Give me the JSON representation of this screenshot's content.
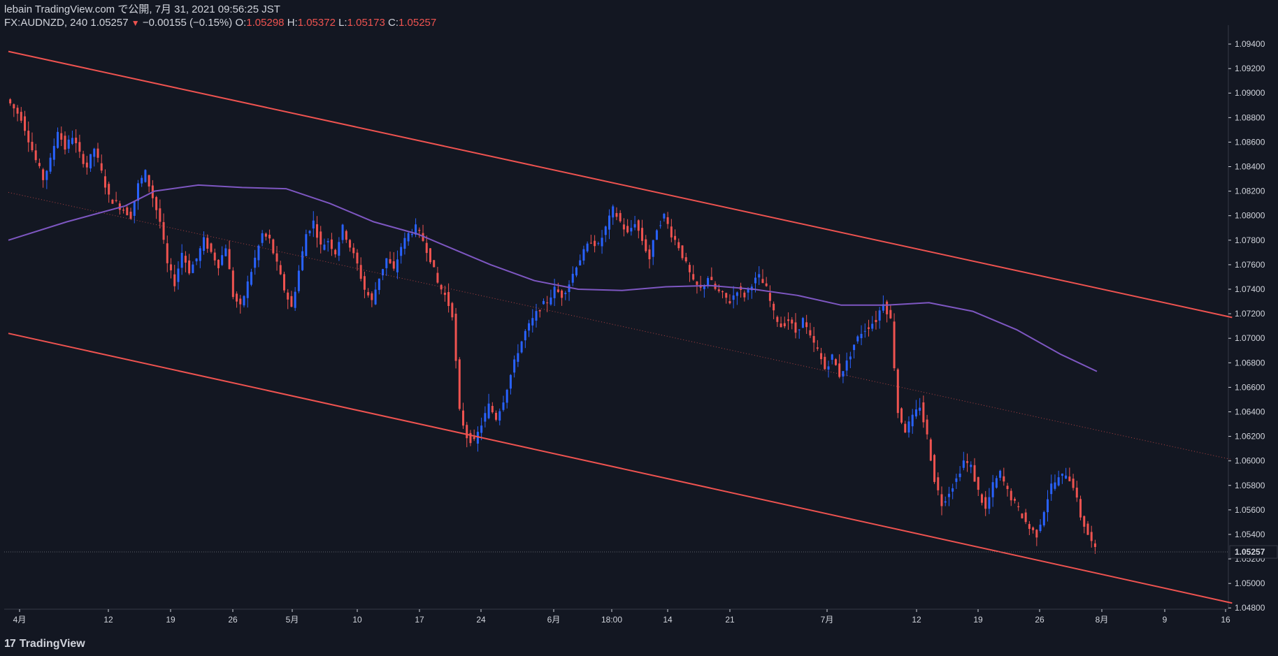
{
  "header": {
    "line1": "lebain TradingView.com で公開, 7月 31, 2021 09:56:25 JST",
    "symbol_prefix": "FX:AUDNZD, 240 1.05257",
    "change_arrow": "▼",
    "change": "−0.00155 (−0.15%)",
    "o_label": "O:",
    "o_value": "1.05298",
    "h_label": "H:",
    "h_value": "1.05372",
    "l_label": "L:",
    "l_value": "1.05173",
    "c_label": "C:",
    "c_value": "1.05257"
  },
  "footer": {
    "logo_icon": "17",
    "logo_text": "TradingView"
  },
  "colors": {
    "background": "#131722",
    "up": "#2962ff",
    "down": "#ef5350",
    "ma": "#7e57c2",
    "channel": "#ef5350",
    "axis_text": "#d1d4dc"
  },
  "chart_data": {
    "type": "candlestick",
    "symbol": "FX:AUDNZD",
    "interval": "240",
    "last_price": "1.05257",
    "y_ticks": [
      "1.09400",
      "1.09200",
      "1.09000",
      "1.08800",
      "1.08600",
      "1.08400",
      "1.08200",
      "1.08000",
      "1.07800",
      "1.07600",
      "1.07400",
      "1.07200",
      "1.07000",
      "1.06800",
      "1.06600",
      "1.06400",
      "1.06200",
      "1.06000",
      "1.05800",
      "1.05600",
      "1.05400",
      "1.05200",
      "1.05000",
      "1.04800"
    ],
    "ylim": [
      1.0479,
      1.0952
    ],
    "x_ticks": [
      "4月",
      "12",
      "19",
      "26",
      "5月",
      "10",
      "17",
      "24",
      "6月",
      "18:00",
      "14",
      "21",
      "7月",
      "12",
      "19",
      "26",
      "8月",
      "9",
      "16"
    ],
    "price_path": [
      [
        0,
        1.0895
      ],
      [
        2,
        1.088
      ],
      [
        4,
        1.0845
      ],
      [
        5,
        1.083
      ],
      [
        6,
        1.0845
      ],
      [
        7,
        1.087
      ],
      [
        8,
        1.0855
      ],
      [
        9,
        1.0865
      ],
      [
        10,
        1.085
      ],
      [
        11,
        1.084
      ],
      [
        12,
        1.0855
      ],
      [
        13,
        1.0835
      ],
      [
        14,
        1.0815
      ],
      [
        15,
        1.081
      ],
      [
        17,
        1.08
      ],
      [
        18,
        1.0825
      ],
      [
        19,
        1.0835
      ],
      [
        20,
        1.0815
      ],
      [
        21,
        1.0795
      ],
      [
        22,
        1.076
      ],
      [
        23,
        1.0745
      ],
      [
        24,
        1.077
      ],
      [
        25,
        1.0755
      ],
      [
        26,
        1.0765
      ],
      [
        27,
        1.078
      ],
      [
        28,
        1.077
      ],
      [
        29,
        1.076
      ],
      [
        30,
        1.0775
      ],
      [
        31,
        1.0735
      ],
      [
        32,
        1.0725
      ],
      [
        33,
        1.0745
      ],
      [
        34,
        1.0765
      ],
      [
        35,
        1.0785
      ],
      [
        36,
        1.078
      ],
      [
        37,
        1.076
      ],
      [
        38,
        1.074
      ],
      [
        39,
        1.0725
      ],
      [
        40,
        1.0755
      ],
      [
        41,
        1.0785
      ],
      [
        42,
        1.0795
      ],
      [
        43,
        1.0775
      ],
      [
        44,
        1.078
      ],
      [
        45,
        1.077
      ],
      [
        46,
        1.079
      ],
      [
        47,
        1.0775
      ],
      [
        48,
        1.076
      ],
      [
        49,
        1.074
      ],
      [
        50,
        1.073
      ],
      [
        51,
        1.075
      ],
      [
        52,
        1.0765
      ],
      [
        53,
        1.0755
      ],
      [
        54,
        1.0775
      ],
      [
        55,
        1.0785
      ],
      [
        56,
        1.079
      ],
      [
        57,
        1.078
      ],
      [
        58,
        1.0765
      ],
      [
        59,
        1.0745
      ],
      [
        60,
        1.0735
      ],
      [
        61,
        1.072
      ],
      [
        62,
        1.064
      ],
      [
        63,
        1.062
      ],
      [
        64,
        1.0615
      ],
      [
        65,
        1.063
      ],
      [
        66,
        1.0645
      ],
      [
        67,
        1.0635
      ],
      [
        68,
        1.065
      ],
      [
        69,
        1.067
      ],
      [
        70,
        1.069
      ],
      [
        71,
        1.0705
      ],
      [
        72,
        1.0715
      ],
      [
        73,
        1.0725
      ],
      [
        74,
        1.073
      ],
      [
        75,
        1.074
      ],
      [
        76,
        1.0735
      ],
      [
        77,
        1.0745
      ],
      [
        78,
        1.076
      ],
      [
        79,
        1.077
      ],
      [
        80,
        1.078
      ],
      [
        81,
        1.0775
      ],
      [
        82,
        1.079
      ],
      [
        83,
        1.0805
      ],
      [
        84,
        1.0795
      ],
      [
        85,
        1.0785
      ],
      [
        86,
        1.0795
      ],
      [
        87,
        1.078
      ],
      [
        88,
        1.0765
      ],
      [
        89,
        1.079
      ],
      [
        90,
        1.08
      ],
      [
        91,
        1.0785
      ],
      [
        92,
        1.0775
      ],
      [
        93,
        1.076
      ],
      [
        94,
        1.0745
      ],
      [
        95,
        1.074
      ],
      [
        96,
        1.075
      ],
      [
        97,
        1.074
      ],
      [
        98,
        1.0735
      ],
      [
        99,
        1.073
      ],
      [
        100,
        1.074
      ],
      [
        101,
        1.0735
      ],
      [
        102,
        1.0745
      ],
      [
        103,
        1.075
      ],
      [
        104,
        1.074
      ],
      [
        105,
        1.072
      ],
      [
        106,
        1.071
      ],
      [
        107,
        1.0715
      ],
      [
        108,
        1.0705
      ],
      [
        109,
        1.0715
      ],
      [
        110,
        1.07
      ],
      [
        111,
        1.069
      ],
      [
        112,
        1.0675
      ],
      [
        113,
        1.0685
      ],
      [
        114,
        1.067
      ],
      [
        115,
        1.068
      ],
      [
        116,
        1.0695
      ],
      [
        117,
        1.0705
      ],
      [
        118,
        1.071
      ],
      [
        119,
        1.0715
      ],
      [
        120,
        1.073
      ],
      [
        121,
        1.0715
      ],
      [
        122,
        1.064
      ],
      [
        123,
        1.0625
      ],
      [
        124,
        1.0635
      ],
      [
        125,
        1.0645
      ],
      [
        126,
        1.062
      ],
      [
        127,
        1.0585
      ],
      [
        128,
        1.0565
      ],
      [
        129,
        1.0575
      ],
      [
        130,
        1.0585
      ],
      [
        131,
        1.06
      ],
      [
        132,
        1.0595
      ],
      [
        133,
        1.0575
      ],
      [
        134,
        1.056
      ],
      [
        135,
        1.058
      ],
      [
        136,
        1.059
      ],
      [
        137,
        1.0575
      ],
      [
        138,
        1.0565
      ],
      [
        139,
        1.0555
      ],
      [
        140,
        1.0545
      ],
      [
        141,
        1.054
      ],
      [
        142,
        1.056
      ],
      [
        143,
        1.058
      ],
      [
        144,
        1.0585
      ],
      [
        145,
        1.059
      ],
      [
        146,
        1.058
      ],
      [
        147,
        1.0555
      ],
      [
        148,
        1.054
      ],
      [
        149,
        1.0527
      ]
    ],
    "moving_average": [
      [
        0,
        1.078
      ],
      [
        8,
        1.0795
      ],
      [
        16,
        1.0808
      ],
      [
        20,
        1.082
      ],
      [
        26,
        1.0825
      ],
      [
        32,
        1.0823
      ],
      [
        38,
        1.0822
      ],
      [
        44,
        1.081
      ],
      [
        50,
        1.0795
      ],
      [
        56,
        1.0785
      ],
      [
        60,
        1.0775
      ],
      [
        66,
        1.076
      ],
      [
        72,
        1.0747
      ],
      [
        78,
        1.074
      ],
      [
        84,
        1.0739
      ],
      [
        90,
        1.0742
      ],
      [
        96,
        1.0743
      ],
      [
        102,
        1.074
      ],
      [
        108,
        1.0735
      ],
      [
        114,
        1.0727
      ],
      [
        120,
        1.0727
      ],
      [
        126,
        1.0729
      ],
      [
        132,
        1.0722
      ],
      [
        138,
        1.0707
      ],
      [
        144,
        1.0687
      ],
      [
        149,
        1.0673
      ]
    ],
    "channel": {
      "upper": [
        [
          0,
          1.0934
        ],
        [
          167.5,
          1.0717
        ]
      ],
      "lower": [
        [
          0,
          1.0704
        ],
        [
          167.5,
          1.0484
        ]
      ],
      "middle": [
        [
          0,
          1.0819
        ],
        [
          167.5,
          1.0601
        ]
      ]
    }
  }
}
